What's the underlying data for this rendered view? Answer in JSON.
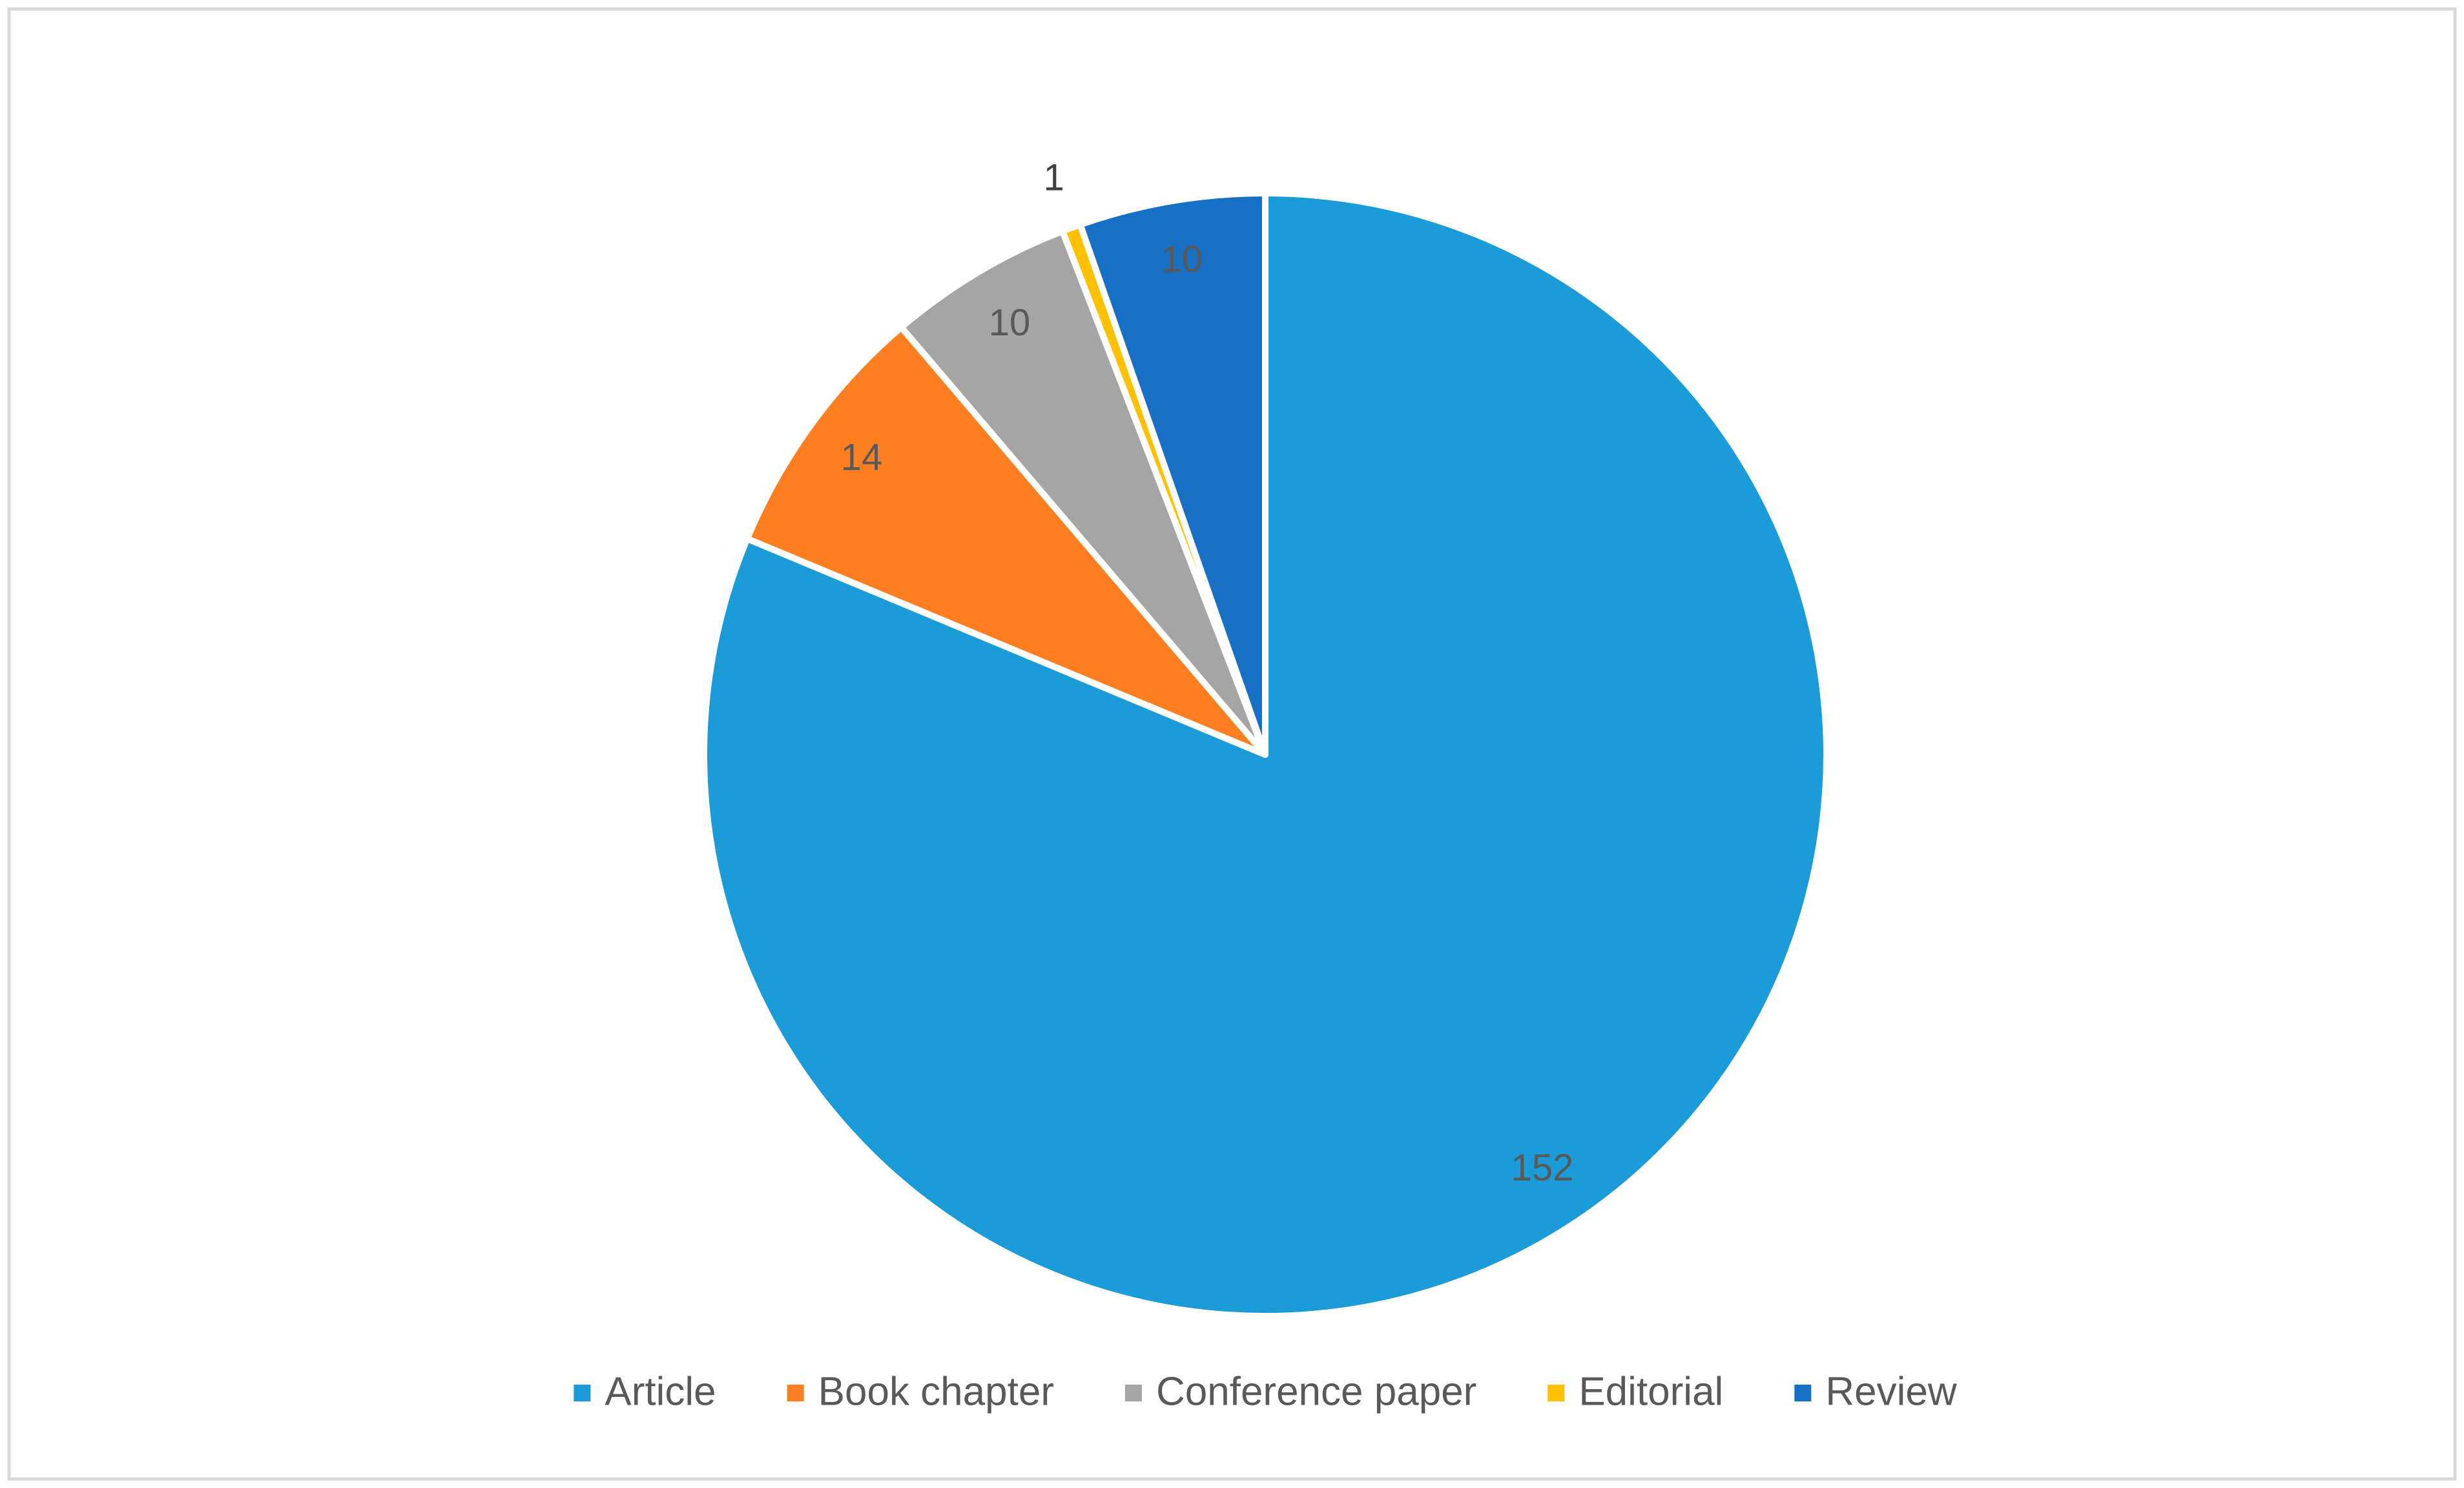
{
  "chart_data": {
    "type": "pie",
    "categories": [
      "Article",
      "Book chapter",
      "Conference paper",
      "Editorial",
      "Review"
    ],
    "values": [
      152,
      14,
      10,
      1,
      10
    ],
    "colors": [
      "#1b9bd7",
      "#fd7f22",
      "#a5a5a5",
      "#ffc000",
      "#1870c4"
    ],
    "legend": "bottom"
  }
}
